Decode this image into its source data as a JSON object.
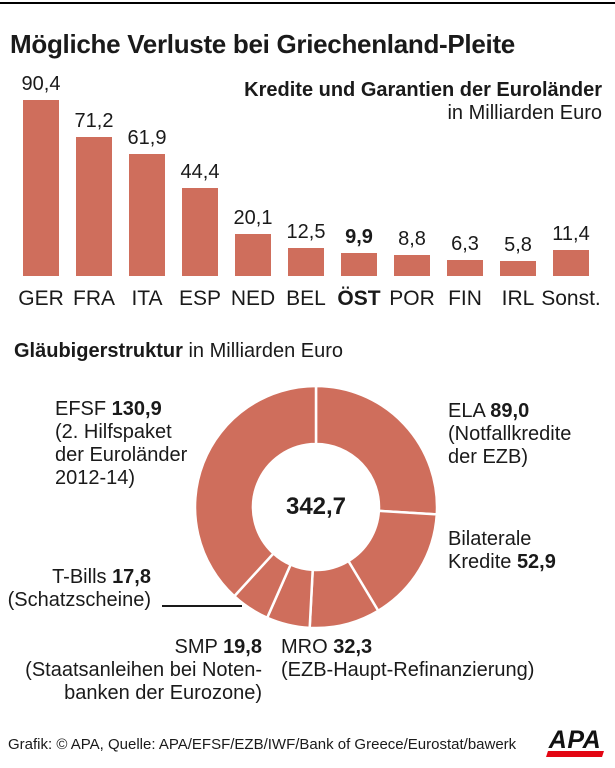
{
  "title": "Mögliche Verluste bei Griechenland-Pleite",
  "colors": {
    "accent": "#cf6e5c",
    "logo_red": "#e30613",
    "text": "#1a1a1a"
  },
  "bar_section": {
    "title_bold": "Kredite und Garantien der Euroländer",
    "title_sub": "in Milliarden Euro"
  },
  "donut_section": {
    "heading_bold": "Gläubigerstruktur",
    "heading_rest": " in Milliarden Euro",
    "center_label": "342,7",
    "labels": {
      "efsf": {
        "name": "EFSF ",
        "value": "130,9",
        "desc1": "(2. Hilfspaket",
        "desc2": "der Euroländer",
        "desc3": "2012-14)"
      },
      "ela": {
        "name": "ELA ",
        "value": "89,0",
        "desc1": "(Notfallkredite",
        "desc2": "der EZB)"
      },
      "bilateral": {
        "line1": "Bilaterale",
        "name": "Kredite ",
        "value": "52,9"
      },
      "tbills": {
        "name": "T-Bills ",
        "value": "17,8",
        "desc1": "(Schatzscheine)"
      },
      "smp": {
        "name": "SMP ",
        "value": "19,8",
        "desc1": "(Staatsanleihen bei Noten-",
        "desc2": "banken der Eurozone)"
      },
      "mro": {
        "name": "MRO ",
        "value": "32,3",
        "desc1": "(EZB-Haupt-Refinanzierung)"
      }
    }
  },
  "footer": {
    "credit": "Grafik: © APA, Quelle: APA/EFSF/EZB/IWF/Bank of Greece/Eurostat/bawerk",
    "logo": "APA"
  },
  "chart_data": [
    {
      "type": "bar",
      "title": "Kredite und Garantien der Euroländer",
      "unit": "in Milliarden Euro",
      "categories": [
        "GER",
        "FRA",
        "ITA",
        "ESP",
        "NED",
        "BEL",
        "ÖST",
        "POR",
        "FIN",
        "IRL",
        "Sonst."
      ],
      "values": [
        90.4,
        71.2,
        61.9,
        44.4,
        20.1,
        12.5,
        9.9,
        8.8,
        6.3,
        5.8,
        11.4
      ],
      "value_labels": [
        "90,4",
        "71,2",
        "61,9",
        "44,4",
        "20,1",
        "12,5",
        "9,9",
        "8,8",
        "6,3",
        "5,8",
        "11,4"
      ],
      "highlight_index": 6,
      "ylim": [
        0,
        95
      ],
      "grid": false,
      "legend": false
    },
    {
      "type": "pie",
      "subtype": "donut",
      "title": "Gläubigerstruktur",
      "unit": "in Milliarden Euro",
      "total": 342.7,
      "center_label": "342,7",
      "start_angle_deg": 0,
      "direction": "clockwise",
      "segments": [
        {
          "id": "ela",
          "label": "ELA",
          "value": 89.0,
          "display": "89,0",
          "note": "Notfallkredite der EZB"
        },
        {
          "id": "bilateral",
          "label": "Bilaterale Kredite",
          "value": 52.9,
          "display": "52,9",
          "note": ""
        },
        {
          "id": "mro",
          "label": "MRO",
          "value": 32.3,
          "display": "32,3",
          "note": "EZB-Haupt-Refinanzierung"
        },
        {
          "id": "smp",
          "label": "SMP",
          "value": 19.8,
          "display": "19,8",
          "note": "Staatsanleihen bei Notenbanken der Eurozone"
        },
        {
          "id": "tbills",
          "label": "T-Bills",
          "value": 17.8,
          "display": "17,8",
          "note": "Schatzscheine"
        },
        {
          "id": "efsf",
          "label": "EFSF",
          "value": 130.9,
          "display": "130,9",
          "note": "2. Hilfspaket der Euroländer 2012-14"
        }
      ]
    }
  ]
}
